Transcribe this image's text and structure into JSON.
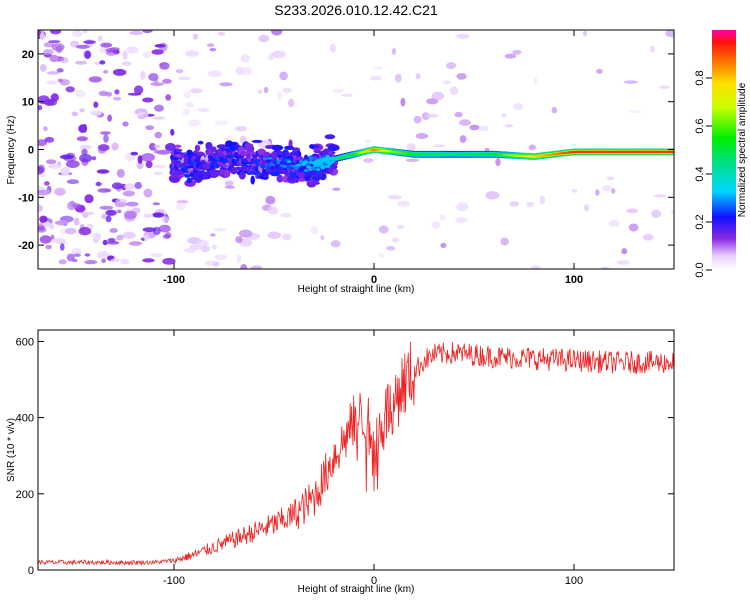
{
  "title": "S233.2026.010.12.42.C21",
  "colors": {
    "snr_line": "#ee2222",
    "frame": "#000000"
  },
  "chart_data": [
    {
      "type": "heatmap",
      "name": "spectrogram",
      "title": "S233.2026.010.12.42.C21",
      "xlabel": "Height of straight line (km)",
      "ylabel": "Frequency (Hz)",
      "xlim": [
        -168,
        150
      ],
      "ylim": [
        -25,
        25
      ],
      "x_ticks": [
        -100,
        0,
        100
      ],
      "x_tick_labels": [
        "-100",
        "0",
        "100"
      ],
      "y_ticks": [
        -20,
        -10,
        0,
        10,
        20
      ],
      "y_tick_labels": [
        "-20",
        "-10",
        "0",
        "10",
        "20"
      ],
      "colorbar": {
        "label": "Normalized spectral amplitude",
        "range": [
          0,
          1
        ],
        "ticks": [
          0.0,
          0.2,
          0.4,
          0.6,
          0.8
        ],
        "tick_labels": [
          "0.0",
          "0.2",
          "0.4",
          "0.6",
          "0.8"
        ]
      },
      "ridge_x": [
        -100,
        -90,
        -80,
        -70,
        -60,
        -50,
        -40,
        -30,
        -20,
        -10,
        0,
        10,
        20,
        40,
        60,
        80,
        100,
        120,
        150
      ],
      "ridge_freq": [
        -3.5,
        -3,
        -2.5,
        -2,
        -2.5,
        -3,
        -3.5,
        -3,
        -2,
        -1,
        0,
        -0.5,
        -1,
        -1,
        -1,
        -1.5,
        -0.5,
        -0.5,
        -0.5
      ],
      "ridge_amplitude": [
        0.15,
        0.15,
        0.15,
        0.15,
        0.15,
        0.2,
        0.25,
        0.35,
        0.45,
        0.55,
        0.9,
        0.65,
        0.55,
        0.5,
        0.55,
        0.8,
        0.95,
        0.95,
        0.95
      ]
    },
    {
      "type": "line",
      "name": "snr",
      "xlabel": "Height of straight line (km)",
      "ylabel": "SNR (10 * v/v)",
      "xlim": [
        -168,
        150
      ],
      "ylim": [
        0,
        630
      ],
      "x_ticks": [
        -100,
        0,
        100
      ],
      "x_tick_labels": [
        "-100",
        "0",
        "100"
      ],
      "y_ticks": [
        0,
        200,
        400,
        600
      ],
      "y_tick_labels": [
        "0",
        "200",
        "400",
        "600"
      ],
      "series": [
        {
          "name": "SNR",
          "x": [
            -168,
            -150,
            -130,
            -110,
            -100,
            -90,
            -80,
            -70,
            -60,
            -50,
            -40,
            -35,
            -30,
            -25,
            -20,
            -15,
            -10,
            -5,
            0,
            5,
            10,
            15,
            20,
            25,
            30,
            40,
            50,
            60,
            80,
            100,
            120,
            150
          ],
          "values": [
            20,
            20,
            20,
            20,
            25,
            40,
            60,
            80,
            100,
            120,
            145,
            165,
            190,
            240,
            300,
            340,
            390,
            410,
            330,
            400,
            450,
            490,
            520,
            550,
            565,
            570,
            565,
            560,
            555,
            550,
            545,
            545
          ]
        }
      ]
    }
  ]
}
